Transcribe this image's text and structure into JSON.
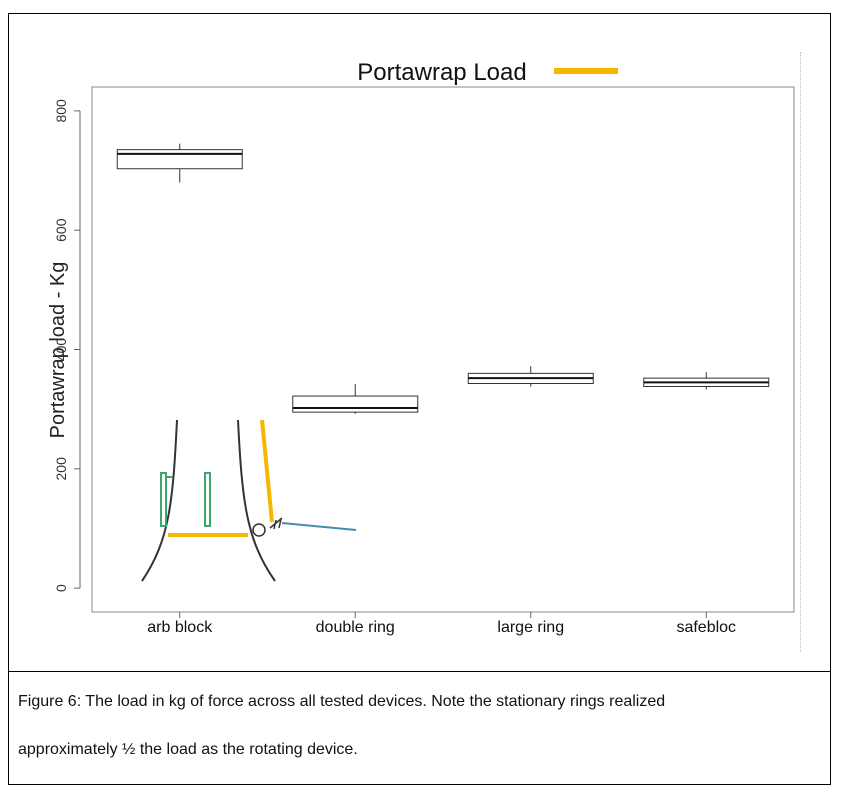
{
  "chart_data": {
    "type": "boxplot",
    "title": "Portawrap Load",
    "legend": [
      {
        "label": "Portawrap Load",
        "color": "#f5b800"
      }
    ],
    "ylabel": "Portawrap load - Kg",
    "xlabel": "",
    "categories": [
      "arb block",
      "double ring",
      "large ring",
      "safebloc"
    ],
    "ylim": [
      -40,
      840
    ],
    "yticks": [
      0,
      200,
      400,
      600,
      800
    ],
    "boxes": [
      {
        "category": "arb block",
        "min": 680,
        "q1": 703,
        "median": 728,
        "q3": 735,
        "max": 745
      },
      {
        "category": "double ring",
        "min": 292,
        "q1": 295,
        "median": 302,
        "q3": 322,
        "max": 342
      },
      {
        "category": "large ring",
        "min": 338,
        "q1": 343,
        "median": 352,
        "q3": 360,
        "max": 372
      },
      {
        "category": "safebloc",
        "min": 333,
        "q1": 338,
        "median": 345,
        "q3": 352,
        "max": 362
      }
    ],
    "grid": false,
    "legend_position": "top"
  },
  "caption": {
    "line1": "Figure 6: The load in kg of force across all tested devices.  Note the stationary rings realized",
    "line2": "approximately ½ the load as the rotating device."
  },
  "colors": {
    "box_stroke": "#333333",
    "legend_line": "#f5b800",
    "sketch_green": "#3aa76d",
    "sketch_blue": "#4a8ab0"
  }
}
